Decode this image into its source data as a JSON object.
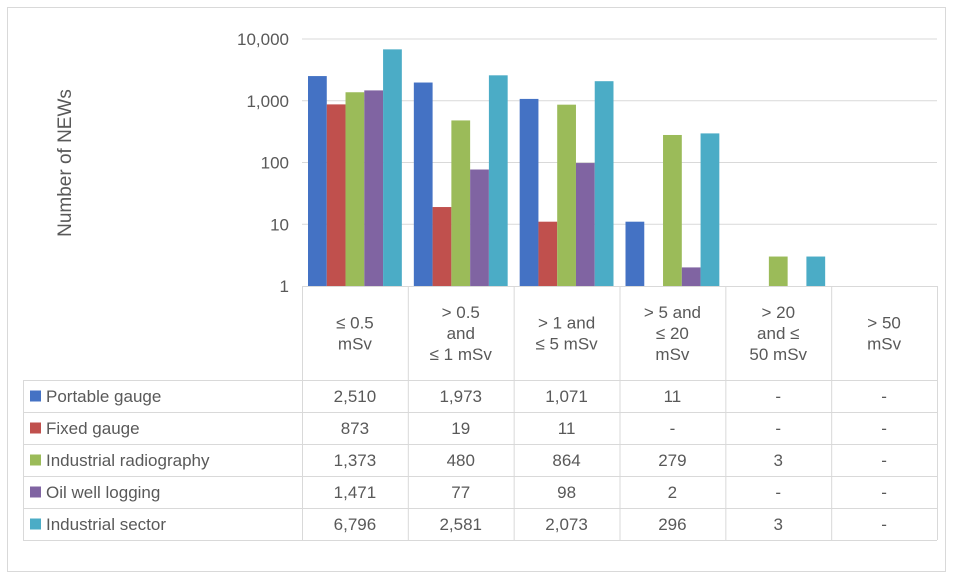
{
  "chart_data": {
    "type": "bar",
    "ylabel": "Number of NEWs",
    "y_scale": "log",
    "ylim": [
      1,
      10000
    ],
    "y_ticks": [
      {
        "value": 1,
        "label": "1"
      },
      {
        "value": 10,
        "label": "10"
      },
      {
        "value": 100,
        "label": "100"
      },
      {
        "value": 1000,
        "label": "1,000"
      },
      {
        "value": 10000,
        "label": "10,000"
      }
    ],
    "grid": true,
    "legend": "data-table",
    "categories": [
      [
        "≤ 0.5",
        "mSv"
      ],
      [
        "> 0.5",
        "and",
        "≤ 1 mSv"
      ],
      [
        "> 1 and",
        "≤ 5 mSv"
      ],
      [
        "> 5 and",
        "≤ 20",
        "mSv"
      ],
      [
        "> 20",
        "and ≤",
        "50 mSv"
      ],
      [
        "> 50",
        "mSv"
      ]
    ],
    "series": [
      {
        "name": "Portable gauge",
        "color": "#4472C4",
        "values": [
          2510,
          1973,
          1071,
          11,
          null,
          null
        ],
        "labels": [
          "2,510",
          "1,973",
          "1,071",
          "11",
          "-",
          "-"
        ]
      },
      {
        "name": "Fixed gauge",
        "color": "#C0504D",
        "values": [
          873,
          19,
          11,
          null,
          null,
          null
        ],
        "labels": [
          "873",
          "19",
          "11",
          "-",
          "-",
          "-"
        ]
      },
      {
        "name": "Industrial radiography",
        "color": "#9BBB59",
        "values": [
          1373,
          480,
          864,
          279,
          3,
          null
        ],
        "labels": [
          "1,373",
          "480",
          "864",
          "279",
          "3",
          "-"
        ]
      },
      {
        "name": "Oil well logging",
        "color": "#8064A2",
        "values": [
          1471,
          77,
          98,
          2,
          null,
          null
        ],
        "labels": [
          "1,471",
          "77",
          "98",
          "2",
          "-",
          "-"
        ]
      },
      {
        "name": "Industrial sector",
        "color": "#4BACC6",
        "values": [
          6796,
          2581,
          2073,
          296,
          3,
          null
        ],
        "labels": [
          "6,796",
          "2,581",
          "2,073",
          "296",
          "3",
          "-"
        ]
      }
    ]
  }
}
